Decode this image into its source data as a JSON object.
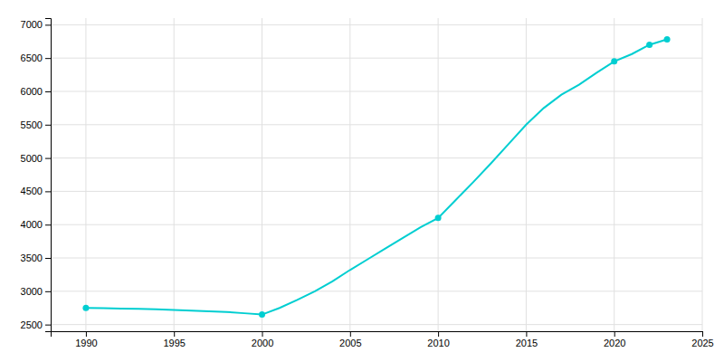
{
  "chart_data": {
    "type": "line",
    "x": [
      1990,
      1991,
      1992,
      1993,
      1994,
      1995,
      1996,
      1997,
      1998,
      1999,
      2000,
      2001,
      2002,
      2003,
      2004,
      2005,
      2006,
      2007,
      2008,
      2009,
      2010,
      2011,
      2012,
      2013,
      2014,
      2015,
      2016,
      2017,
      2018,
      2019,
      2020,
      2021,
      2022,
      2023
    ],
    "series": [
      {
        "type": "line",
        "color": "#00CED1",
        "line_style": "solid",
        "values": [
          2750,
          2745,
          2740,
          2735,
          2730,
          2720,
          2710,
          2700,
          2690,
          2670,
          2650,
          2750,
          2870,
          3000,
          3150,
          3320,
          3480,
          3640,
          3800,
          3960,
          4100,
          4370,
          4640,
          4920,
          5210,
          5500,
          5750,
          5950,
          6100,
          6280,
          6450,
          6560,
          6700,
          6780
        ]
      },
      {
        "type": "scatter",
        "color": "#00CED1",
        "marker": "circle",
        "x": [
          1990,
          2000,
          2010,
          2020,
          2022,
          2023
        ],
        "values": [
          2750,
          2650,
          4100,
          6450,
          6700,
          6780
        ]
      }
    ],
    "xlim": [
      1988,
      2025
    ],
    "ylim": [
      2400,
      7100
    ],
    "xticks": [
      1990,
      1995,
      2000,
      2005,
      2010,
      2015,
      2020,
      2025
    ],
    "yticks": [
      2500,
      3000,
      3500,
      4000,
      4500,
      5000,
      5500,
      6000,
      6500,
      7000
    ],
    "grid": true
  }
}
